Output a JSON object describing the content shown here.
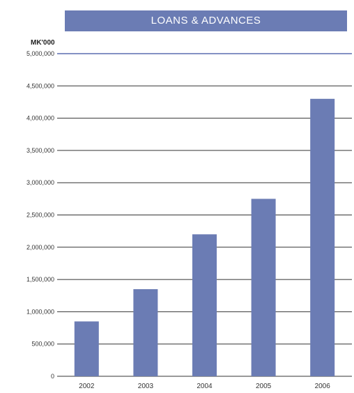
{
  "chart_data": {
    "type": "bar",
    "title": "LOANS & ADVANCES",
    "ylabel": "MK'000",
    "xlabel": "",
    "categories": [
      "2002",
      "2003",
      "2004",
      "2005",
      "2006"
    ],
    "values": [
      850000,
      1350000,
      2200000,
      2750000,
      4300000
    ],
    "ylim": [
      0,
      5000000
    ],
    "yticks": [
      0,
      500000,
      1000000,
      1500000,
      2000000,
      2500000,
      3000000,
      3500000,
      4000000,
      4500000,
      5000000
    ],
    "ytick_labels": [
      "0",
      "500,000",
      "1,000,000",
      "1,500,000",
      "2,000,000",
      "2,500,000",
      "3,000,000",
      "3,500,000",
      "4,000,000",
      "4,500,000",
      "5,000,000"
    ],
    "grid": true,
    "colors": {
      "bar": "#6b7cb4",
      "banner": "#6b7cb4",
      "gridline": "#333333",
      "gridline_top": "#3b4fa0"
    }
  }
}
